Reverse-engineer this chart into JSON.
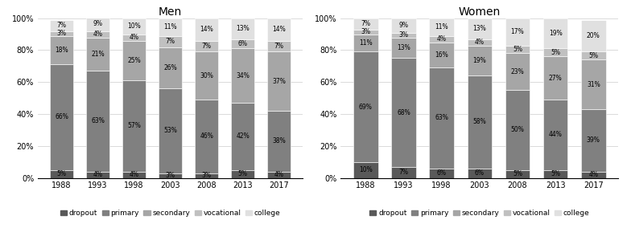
{
  "years": [
    "1988",
    "1993",
    "1998",
    "2003",
    "2008",
    "2013",
    "2017"
  ],
  "men": {
    "dropout": [
      5,
      4,
      4,
      3,
      3,
      5,
      4
    ],
    "primary": [
      66,
      63,
      57,
      53,
      46,
      42,
      38
    ],
    "secondary": [
      18,
      21,
      25,
      26,
      30,
      34,
      37
    ],
    "vocational": [
      3,
      4,
      4,
      7,
      7,
      6,
      7
    ],
    "college": [
      7,
      9,
      10,
      11,
      14,
      13,
      14
    ]
  },
  "women": {
    "dropout": [
      10,
      7,
      6,
      6,
      5,
      5,
      4
    ],
    "primary": [
      69,
      68,
      63,
      58,
      50,
      44,
      39
    ],
    "secondary": [
      11,
      13,
      16,
      19,
      23,
      27,
      31
    ],
    "vocational": [
      3,
      3,
      4,
      4,
      5,
      5,
      5
    ],
    "college": [
      7,
      9,
      11,
      13,
      17,
      19,
      20
    ]
  },
  "categories": [
    "dropout",
    "primary",
    "secondary",
    "vocational",
    "college"
  ],
  "colors": [
    "#595959",
    "#808080",
    "#A6A6A6",
    "#C0C0C0",
    "#E0E0E0"
  ],
  "title_men": "Men",
  "title_women": "Women",
  "ylim": [
    0,
    100
  ],
  "yticks": [
    0,
    20,
    40,
    60,
    80,
    100
  ],
  "ytick_labels": [
    "0%",
    "20%",
    "40%",
    "60%",
    "80%",
    "100%"
  ],
  "legend_labels": [
    "dropout",
    "primary",
    "secondary",
    "vocational",
    "college"
  ],
  "bar_width": 0.65,
  "label_fontsize": 5.5,
  "title_fontsize": 10,
  "tick_fontsize": 7,
  "legend_fontsize": 6.5
}
